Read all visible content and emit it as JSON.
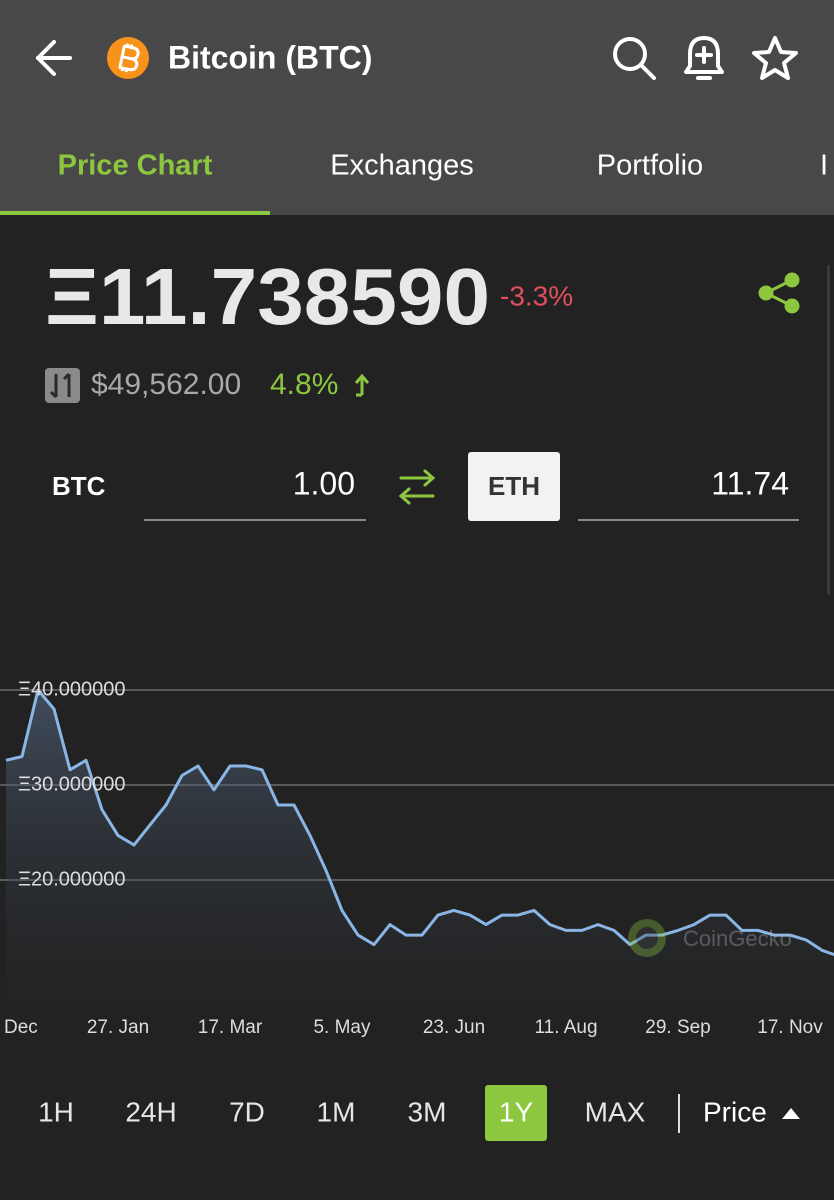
{
  "header": {
    "title": "Bitcoin (BTC)"
  },
  "tabs": [
    "Price Chart",
    "Exchanges",
    "Portfolio",
    "I"
  ],
  "price": {
    "value": "Ξ11.738590",
    "change": "-3.3%",
    "usd": "$49,562.00",
    "usd_change": "4.8%"
  },
  "converter": {
    "from_label": "BTC",
    "from_amount": "1.00",
    "to_label": "ETH",
    "to_amount": "11.74"
  },
  "ranges": [
    "1H",
    "24H",
    "7D",
    "1M",
    "3M",
    "1Y",
    "MAX"
  ],
  "active_range": "1Y",
  "metric": "Price",
  "chart_data": {
    "type": "line",
    "watermark": "CoinGecko",
    "categories": [
      "Dec",
      null,
      null,
      null,
      null,
      null,
      null,
      "27. Jan",
      null,
      null,
      null,
      null,
      null,
      null,
      "17. Mar",
      null,
      null,
      null,
      null,
      null,
      null,
      "5. May",
      null,
      null,
      null,
      null,
      null,
      null,
      "23. Jun",
      null,
      null,
      null,
      null,
      null,
      null,
      "11. Aug",
      null,
      null,
      null,
      null,
      null,
      null,
      "29. Sep",
      null,
      null,
      null,
      null,
      null,
      null,
      "17. Nov",
      null,
      null,
      null
    ],
    "values": [
      32.6,
      33,
      40,
      38,
      31.6,
      32.6,
      27.4,
      24.7,
      23.7,
      25.8,
      27.9,
      31,
      32,
      29.5,
      32,
      32,
      31.6,
      27.9,
      27.9,
      24.7,
      21,
      16.8,
      14.2,
      13.2,
      15.3,
      14.2,
      14.2,
      16.3,
      16.8,
      16.3,
      15.3,
      16.3,
      16.3,
      16.8,
      15.3,
      14.7,
      14.7,
      15.3,
      14.7,
      13.2,
      14.2,
      14.2,
      14.7,
      15.3,
      16.3,
      16.3,
      14.7,
      14.7,
      14.2,
      14.2,
      13.7,
      12.6,
      12.0
    ],
    "color": "#8ab6e6",
    "ylim": [
      7,
      45
    ],
    "yticks": [
      {
        "value": 20,
        "label": "Ξ20.000000"
      },
      {
        "value": 30,
        "label": "Ξ30.000000"
      },
      {
        "value": 40,
        "label": "Ξ40.000000"
      }
    ],
    "grid": true
  }
}
